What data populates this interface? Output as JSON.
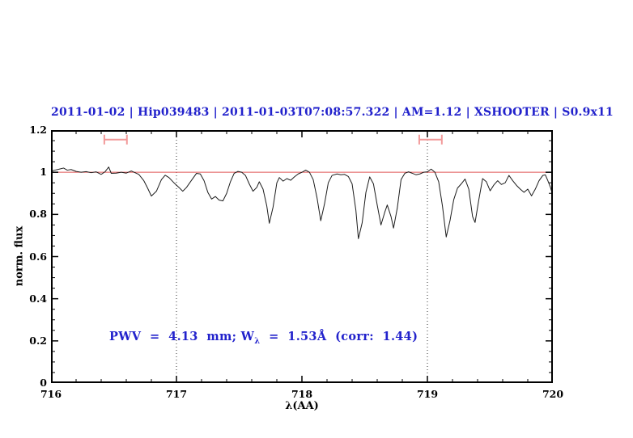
{
  "header": {
    "title": "2011-01-02 | Hip039483 | 2011-01-03T07:08:57.322 | AM=1.12 | XSHOOTER | S0.9x11"
  },
  "annotation": {
    "prefix": "PWV  =  4.13  mm; W",
    "sub": "λ",
    "suffix": "  =  1.53Å  (corr:  1.44)"
  },
  "colors": {
    "accent_blue": "#2222cc",
    "continuum_red": "#e05555",
    "marker_pink": "#f29a9a",
    "spectrum_black": "#1c1c1c",
    "dotted_line": "#333333",
    "frame": "#000000"
  },
  "chart_data": {
    "type": "line",
    "title": "2011-01-02 | Hip039483 | 2011-01-03T07:08:57.322 | AM=1.12 | XSHOOTER | S0.9x11",
    "xlabel": "λ(AA)",
    "ylabel": "norm. flux",
    "xlim": [
      716,
      720
    ],
    "ylim": [
      0,
      1.2
    ],
    "x_major_ticks": [
      "716",
      "717",
      "718",
      "719",
      "720"
    ],
    "x_minor_step": 0.2,
    "y_major_ticks": [
      "0",
      "0.2",
      "0.4",
      "0.6",
      "0.8",
      "1",
      "1.2"
    ],
    "y_minor_step": 0.05,
    "grid": false,
    "legend": "none",
    "dotted_lines_x": [
      717,
      719
    ],
    "continuum_level": 1.0,
    "telluric_band_markers": [
      {
        "x_center": 716.515,
        "half_width": 0.09,
        "y": 1.155,
        "cap_half_height": 0.023
      },
      {
        "x_center": 719.025,
        "half_width": 0.09,
        "y": 1.155,
        "cap_half_height": 0.023
      }
    ],
    "series": [
      {
        "name": "spectrum",
        "x": [
          716.0,
          716.03,
          716.06,
          716.1,
          716.13,
          716.16,
          716.2,
          716.24,
          716.28,
          716.32,
          716.36,
          716.4,
          716.43,
          716.46,
          716.48,
          716.52,
          716.56,
          716.6,
          716.64,
          716.67,
          716.7,
          716.74,
          716.77,
          716.8,
          716.84,
          716.88,
          716.91,
          716.94,
          716.98,
          717.02,
          717.05,
          717.08,
          717.12,
          717.16,
          717.19,
          717.22,
          717.25,
          717.28,
          717.31,
          717.34,
          717.37,
          717.4,
          717.43,
          717.46,
          717.49,
          717.52,
          717.55,
          717.58,
          717.61,
          717.64,
          717.66,
          717.69,
          717.72,
          717.74,
          717.77,
          717.8,
          717.82,
          717.85,
          717.88,
          717.91,
          717.94,
          717.97,
          718.0,
          718.03,
          718.06,
          718.09,
          718.12,
          718.15,
          718.18,
          718.21,
          718.24,
          718.28,
          718.31,
          718.34,
          718.37,
          718.4,
          718.43,
          718.45,
          718.48,
          718.51,
          718.54,
          718.57,
          718.6,
          718.63,
          718.66,
          718.68,
          718.71,
          718.73,
          718.76,
          718.79,
          718.82,
          718.85,
          718.88,
          718.91,
          718.94,
          718.97,
          719.0,
          719.03,
          719.06,
          719.09,
          719.12,
          719.15,
          719.18,
          719.21,
          719.24,
          719.27,
          719.3,
          719.33,
          719.36,
          719.38,
          719.41,
          719.44,
          719.47,
          719.5,
          719.53,
          719.56,
          719.59,
          719.62,
          719.65,
          719.68,
          719.71,
          719.74,
          719.77,
          719.8,
          719.83,
          719.86,
          719.89,
          719.92,
          719.94,
          719.96,
          719.98,
          720.0
        ],
        "y": [
          1.005,
          1.01,
          1.014,
          1.02,
          1.01,
          1.013,
          1.004,
          1.0,
          1.003,
          0.998,
          1.002,
          0.99,
          1.002,
          1.025,
          0.995,
          0.996,
          1.0,
          0.996,
          1.006,
          0.998,
          0.99,
          0.96,
          0.925,
          0.887,
          0.91,
          0.965,
          0.986,
          0.975,
          0.95,
          0.928,
          0.91,
          0.928,
          0.962,
          0.995,
          0.992,
          0.96,
          0.905,
          0.873,
          0.885,
          0.868,
          0.864,
          0.9,
          0.955,
          0.995,
          1.004,
          1.0,
          0.985,
          0.945,
          0.91,
          0.928,
          0.955,
          0.92,
          0.84,
          0.758,
          0.835,
          0.95,
          0.975,
          0.958,
          0.97,
          0.962,
          0.978,
          0.992,
          1.0,
          1.01,
          1.0,
          0.965,
          0.88,
          0.77,
          0.85,
          0.95,
          0.985,
          0.992,
          0.988,
          0.99,
          0.98,
          0.945,
          0.82,
          0.685,
          0.76,
          0.905,
          0.978,
          0.945,
          0.845,
          0.75,
          0.81,
          0.845,
          0.79,
          0.735,
          0.83,
          0.965,
          0.995,
          1.002,
          0.995,
          0.988,
          0.992,
          1.0,
          1.002,
          1.015,
          1.0,
          0.955,
          0.84,
          0.693,
          0.77,
          0.87,
          0.925,
          0.945,
          0.968,
          0.92,
          0.79,
          0.762,
          0.87,
          0.97,
          0.955,
          0.912,
          0.94,
          0.96,
          0.942,
          0.95,
          0.985,
          0.96,
          0.938,
          0.92,
          0.905,
          0.92,
          0.888,
          0.92,
          0.96,
          0.985,
          0.988,
          0.96,
          0.93,
          0.89
        ]
      }
    ]
  }
}
